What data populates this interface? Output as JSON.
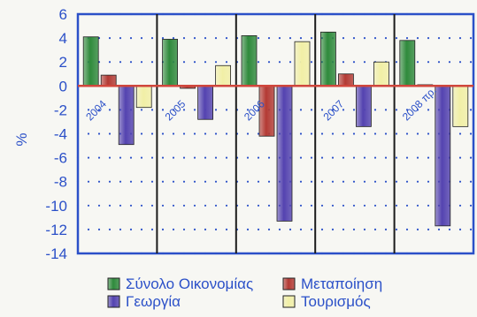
{
  "chart_data": {
    "type": "bar",
    "ylabel": "%",
    "ylim": [
      -14,
      6
    ],
    "yticks": [
      6,
      4,
      2,
      0,
      -2,
      -4,
      -6,
      -8,
      -10,
      -12,
      -14
    ],
    "grid": "dotted",
    "legend_position": "bottom",
    "categories": [
      "2004",
      "2005",
      "2006",
      "2007",
      "2008 πρ."
    ],
    "series": [
      {
        "name": "Σύνολο Οικονομίας",
        "color": "#2f8a3c",
        "values": [
          4.1,
          3.9,
          4.2,
          4.5,
          3.8
        ]
      },
      {
        "name": "Μεταποίηση",
        "color": "#b33a34",
        "values": [
          0.9,
          -0.2,
          -4.2,
          1.0,
          0.1
        ]
      },
      {
        "name": "Γεωργία",
        "color": "#5443b0",
        "values": [
          -4.9,
          -2.8,
          -11.3,
          -3.4,
          -11.7
        ]
      },
      {
        "name": "Τουρισμός",
        "color": "#f1efa6",
        "values": [
          -1.8,
          1.7,
          3.7,
          2.0,
          -3.4
        ]
      }
    ]
  }
}
